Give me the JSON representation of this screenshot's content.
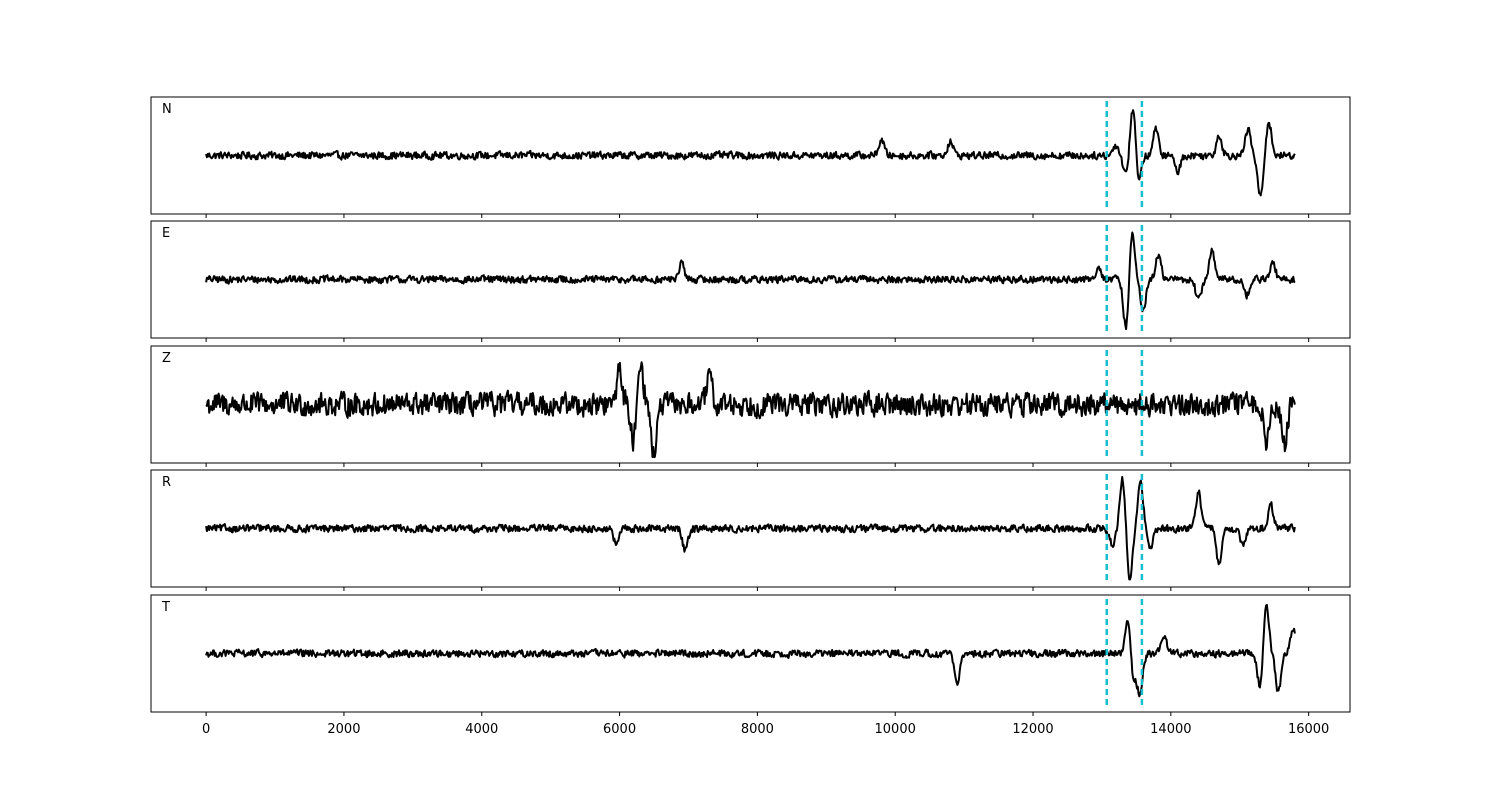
{
  "chart_data": {
    "type": "line",
    "x_ticks": [
      0,
      2000,
      4000,
      6000,
      8000,
      10000,
      12000,
      14000,
      16000
    ],
    "xlim": [
      -800,
      16600
    ],
    "x_extent": [
      0,
      15800
    ],
    "ylim": [
      -1,
      1
    ],
    "grid": false,
    "colors": {
      "trace": "#000000",
      "marker": "#17becf",
      "frame": "#000000"
    },
    "markers": [
      13070,
      13580
    ],
    "panels": [
      {
        "label": "N",
        "events": [
          {
            "x": 9800,
            "a": 0.3
          },
          {
            "x": 10800,
            "a": 0.28
          },
          {
            "x": 13200,
            "a": 0.2
          },
          {
            "x": 13350,
            "a": -0.35
          },
          {
            "x": 13450,
            "a": 0.95
          },
          {
            "x": 13530,
            "a": -0.5
          },
          {
            "x": 13780,
            "a": 0.5
          },
          {
            "x": 14100,
            "a": -0.3
          },
          {
            "x": 14700,
            "a": 0.4
          },
          {
            "x": 15120,
            "a": 0.5
          },
          {
            "x": 15300,
            "a": -0.8
          },
          {
            "x": 15420,
            "a": 0.65
          }
        ]
      },
      {
        "label": "E",
        "events": [
          {
            "x": 6900,
            "a": 0.3
          },
          {
            "x": 12950,
            "a": 0.25
          },
          {
            "x": 13350,
            "a": -0.95
          },
          {
            "x": 13440,
            "a": 0.9
          },
          {
            "x": 13600,
            "a": -0.6
          },
          {
            "x": 13820,
            "a": 0.45
          },
          {
            "x": 14400,
            "a": -0.4
          },
          {
            "x": 14600,
            "a": 0.55
          },
          {
            "x": 15100,
            "a": -0.3
          },
          {
            "x": 15480,
            "a": 0.3
          }
        ]
      },
      {
        "label": "Z",
        "events": [
          {
            "x": 6000,
            "a": 0.7
          },
          {
            "x": 6200,
            "a": -0.7
          },
          {
            "x": 6300,
            "a": 0.9
          },
          {
            "x": 6500,
            "a": -1.0
          },
          {
            "x": 7300,
            "a": 0.5
          },
          {
            "x": 15400,
            "a": -0.7
          },
          {
            "x": 15650,
            "a": -0.8
          }
        ]
      },
      {
        "label": "R",
        "events": [
          {
            "x": 5950,
            "a": -0.3
          },
          {
            "x": 6950,
            "a": -0.4
          },
          {
            "x": 13150,
            "a": -0.3
          },
          {
            "x": 13300,
            "a": 0.95
          },
          {
            "x": 13400,
            "a": -0.95
          },
          {
            "x": 13560,
            "a": 0.85
          },
          {
            "x": 13700,
            "a": -0.4
          },
          {
            "x": 14400,
            "a": 0.7
          },
          {
            "x": 14700,
            "a": -0.7
          },
          {
            "x": 15050,
            "a": -0.35
          },
          {
            "x": 15450,
            "a": 0.45
          }
        ]
      },
      {
        "label": "T",
        "events": [
          {
            "x": 10900,
            "a": -0.6
          },
          {
            "x": 13380,
            "a": 0.7
          },
          {
            "x": 13450,
            "a": -0.55
          },
          {
            "x": 13550,
            "a": -0.75
          },
          {
            "x": 13900,
            "a": 0.35
          },
          {
            "x": 15300,
            "a": -0.7
          },
          {
            "x": 15380,
            "a": 1.0
          },
          {
            "x": 15560,
            "a": -0.75
          },
          {
            "x": 15780,
            "a": 0.5
          }
        ]
      }
    ]
  }
}
